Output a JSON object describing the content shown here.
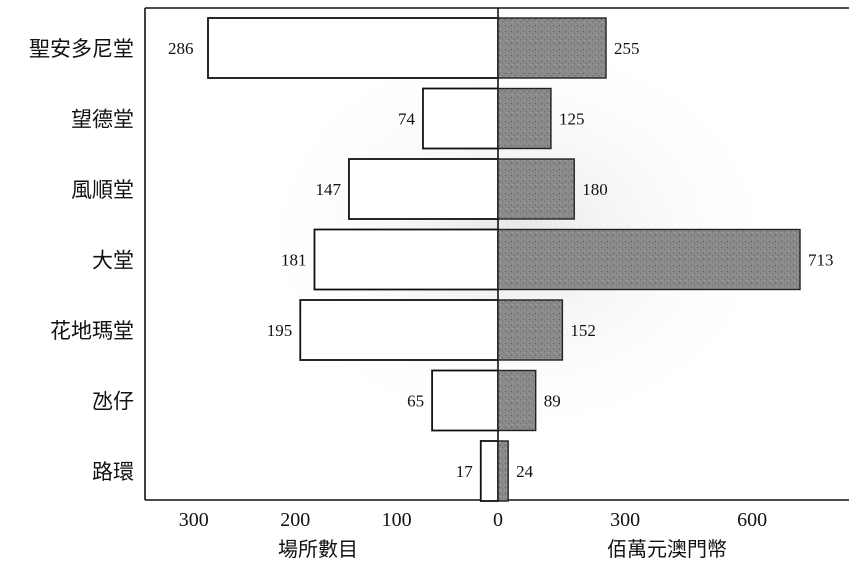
{
  "chart_data": {
    "type": "bar",
    "orientation": "horizontal-diverging",
    "categories": [
      "聖安多尼堂",
      "望德堂",
      "風順堂",
      "大堂",
      "花地瑪堂",
      "氹仔",
      "路環"
    ],
    "series": [
      {
        "side": "left",
        "values": [
          286,
          74,
          147,
          181,
          195,
          65,
          17
        ],
        "color": "#ffffff"
      },
      {
        "side": "right",
        "values": [
          255,
          125,
          180,
          713,
          152,
          89,
          24
        ],
        "color": "#8a8a8a"
      }
    ],
    "left_axis": {
      "label": "場所數目",
      "ticks": [
        "300",
        "200",
        "100",
        "0"
      ],
      "lim": [
        300,
        0
      ]
    },
    "right_axis": {
      "label": "佰萬元澳門幣",
      "ticks": [
        "0",
        "300",
        "600"
      ],
      "lim": [
        0,
        713
      ]
    },
    "grid": false,
    "legend": "none"
  }
}
